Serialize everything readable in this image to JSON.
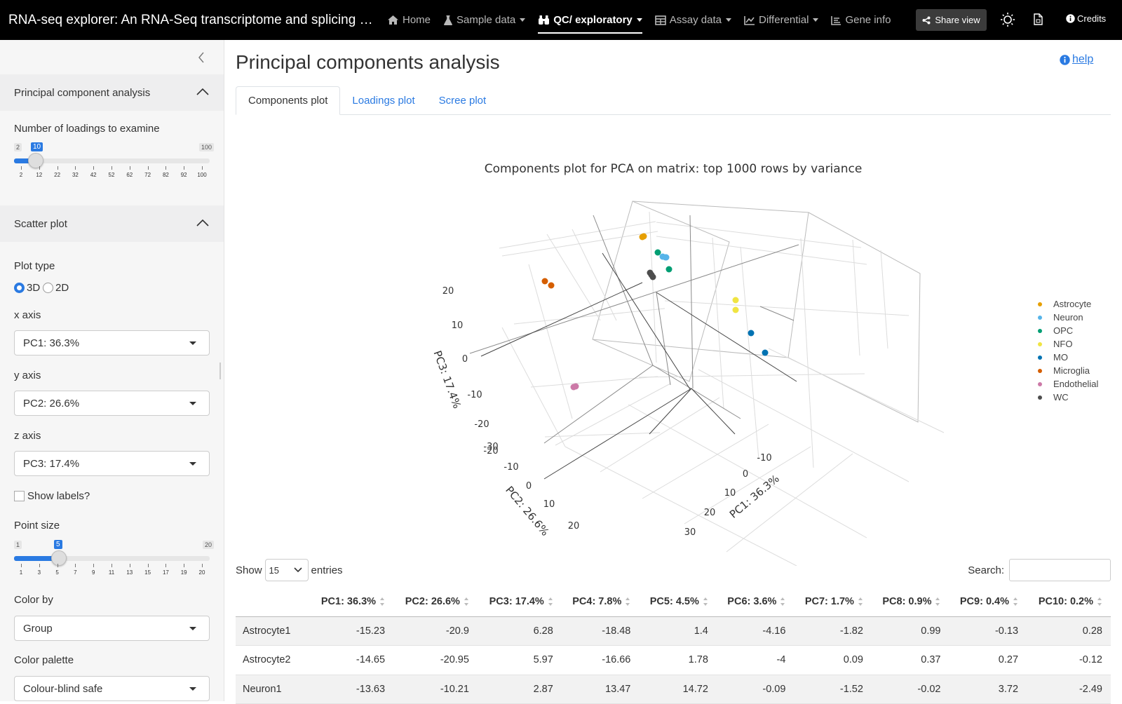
{
  "navbar": {
    "title": "RNA-seq explorer: An RNA-Seq transcriptome and splicing database of glia, neurons, and vascular cells of the cerebral cortex",
    "items": [
      {
        "label": "Home",
        "icon": "home-icon",
        "active": false,
        "dropdown": false
      },
      {
        "label": "Sample data",
        "icon": "flask-icon",
        "active": false,
        "dropdown": true
      },
      {
        "label": "QC/ exploratory",
        "icon": "binoculars-icon",
        "active": true,
        "dropdown": true
      },
      {
        "label": "Assay data",
        "icon": "table-icon",
        "active": false,
        "dropdown": true
      },
      {
        "label": "Differential",
        "icon": "chart-line-icon",
        "active": false,
        "dropdown": true
      },
      {
        "label": "Gene info",
        "icon": "list-icon",
        "active": false,
        "dropdown": false
      }
    ],
    "share_label": "Share view",
    "credits_label": "Credits"
  },
  "sidebar": {
    "pca_section": "Principal component analysis",
    "loadings_label": "Number of loadings to examine",
    "loadings_slider": {
      "min": "2",
      "max": "100",
      "value": "10",
      "ticks": [
        "2",
        "12",
        "22",
        "32",
        "42",
        "52",
        "62",
        "72",
        "82",
        "92",
        "100"
      ]
    },
    "scatter_section": "Scatter plot",
    "plot_type_label": "Plot type",
    "plot_type_options": [
      "3D",
      "2D"
    ],
    "x_axis_label": "x axis",
    "x_axis_value": "PC1: 36.3%",
    "y_axis_label": "y axis",
    "y_axis_value": "PC2: 26.6%",
    "z_axis_label": "z axis",
    "z_axis_value": "PC3: 17.4%",
    "show_labels": "Show labels?",
    "point_size_label": "Point size",
    "point_size_slider": {
      "min": "1",
      "max": "20",
      "value": "5",
      "ticks": [
        "1",
        "3",
        "5",
        "7",
        "9",
        "11",
        "13",
        "15",
        "17",
        "19",
        "20"
      ]
    },
    "color_by_label": "Color by",
    "color_by_value": "Group",
    "palette_label": "Color palette",
    "palette_value": "Colour-blind safe"
  },
  "main": {
    "page_title": "Principal components analysis",
    "help_label": "help",
    "tabs": [
      "Components plot",
      "Loadings plot",
      "Scree plot"
    ]
  },
  "chart_data": {
    "type": "scatter",
    "title": "Components plot for PCA on matrix: top 1000 rows by variance",
    "xlabel": "PC1: 36.3%",
    "ylabel": "PC2: 26.6%",
    "zlabel": "PC3: 17.4%",
    "x_ticks": [
      "-10",
      "0",
      "10",
      "20",
      "30"
    ],
    "y_ticks": [
      "-20",
      "-10",
      "0",
      "10",
      "20"
    ],
    "z_ticks": [
      "20",
      "10",
      "0",
      "-10",
      "-20",
      "-30"
    ],
    "legend_position": "right",
    "series": [
      {
        "name": "Astrocyte",
        "color": "#E69F00"
      },
      {
        "name": "Neuron",
        "color": "#56B4E9"
      },
      {
        "name": "OPC",
        "color": "#009E73"
      },
      {
        "name": "NFO",
        "color": "#F0E442"
      },
      {
        "name": "MO",
        "color": "#0072B2"
      },
      {
        "name": "Microglia",
        "color": "#D55E00"
      },
      {
        "name": "Endothelial",
        "color": "#CC79A7"
      },
      {
        "name": "WC",
        "color": "#4D4D4D"
      }
    ]
  },
  "table": {
    "show_label": "Show",
    "entries_value": "15",
    "entries_label": "entries",
    "search_label": "Search:",
    "columns": [
      "",
      "PC1: 36.3%",
      "PC2: 26.6%",
      "PC3: 17.4%",
      "PC4: 7.8%",
      "PC5: 4.5%",
      "PC6: 3.6%",
      "PC7: 1.7%",
      "PC8: 0.9%",
      "PC9: 0.4%",
      "PC10: 0.2%"
    ],
    "rows": [
      [
        "Astrocyte1",
        "-15.23",
        "-20.9",
        "6.28",
        "-18.48",
        "1.4",
        "-4.16",
        "-1.82",
        "0.99",
        "-0.13",
        "0.28"
      ],
      [
        "Astrocyte2",
        "-14.65",
        "-20.95",
        "5.97",
        "-16.66",
        "1.78",
        "-4",
        "0.09",
        "0.37",
        "0.27",
        "-0.12"
      ],
      [
        "Neuron1",
        "-13.63",
        "-10.21",
        "2.87",
        "13.47",
        "14.72",
        "-0.09",
        "-1.52",
        "-0.02",
        "3.72",
        "-2.49"
      ]
    ]
  }
}
